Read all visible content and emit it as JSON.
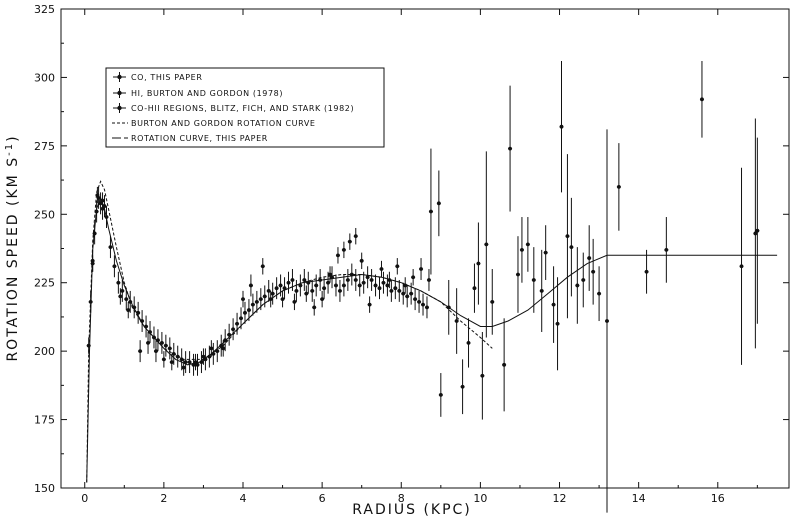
{
  "chart_data": {
    "type": "scatter",
    "xlabel": "RADIUS (KPC)",
    "ylabel": "ROTATION SPEED (KM S",
    "ylabel_sup": "-1",
    "ylabel_close": ")",
    "xlim": [
      -0.6,
      17.8
    ],
    "ylim": [
      150,
      325
    ],
    "x_ticks": [
      0,
      2,
      4,
      6,
      8,
      10,
      12,
      14,
      16
    ],
    "y_ticks": [
      150,
      175,
      200,
      225,
      250,
      275,
      300,
      325
    ],
    "grid": false,
    "legend_placement": "top-left",
    "series": [
      {
        "name": "CO, THIS PAPER",
        "kind": "points",
        "points": [
          [
            0.15,
            218,
            4
          ],
          [
            0.2,
            233,
            4
          ],
          [
            0.25,
            243,
            4
          ],
          [
            0.3,
            251,
            4
          ],
          [
            0.35,
            256,
            4
          ],
          [
            0.4,
            254,
            4
          ],
          [
            0.45,
            252,
            4
          ],
          [
            0.5,
            253,
            4
          ],
          [
            0.55,
            249,
            4
          ],
          [
            0.65,
            238,
            4
          ],
          [
            0.75,
            231,
            4
          ],
          [
            0.85,
            225,
            4
          ],
          [
            0.95,
            222,
            4
          ],
          [
            1.05,
            219,
            4
          ],
          [
            1.15,
            218,
            4
          ],
          [
            1.25,
            216,
            4
          ],
          [
            1.35,
            214,
            4
          ],
          [
            1.45,
            211,
            4
          ],
          [
            1.55,
            209,
            4
          ],
          [
            1.65,
            207,
            4
          ],
          [
            1.75,
            205,
            4
          ],
          [
            1.85,
            204,
            4
          ],
          [
            1.95,
            203,
            4
          ],
          [
            2.05,
            202,
            4
          ],
          [
            2.15,
            201,
            4
          ],
          [
            2.25,
            199,
            4
          ],
          [
            2.35,
            198,
            4
          ],
          [
            2.45,
            197,
            4
          ],
          [
            2.55,
            196,
            4
          ],
          [
            2.65,
            196,
            4
          ],
          [
            2.75,
            195,
            4
          ],
          [
            2.85,
            195,
            4
          ],
          [
            2.95,
            196,
            4
          ],
          [
            3.05,
            197,
            4
          ],
          [
            3.15,
            198,
            4
          ],
          [
            3.25,
            199,
            4
          ],
          [
            3.35,
            200,
            4
          ],
          [
            3.45,
            202,
            4
          ],
          [
            3.55,
            204,
            4
          ],
          [
            3.65,
            206,
            4
          ],
          [
            3.75,
            208,
            4
          ],
          [
            3.85,
            210,
            4
          ],
          [
            3.95,
            212,
            4
          ],
          [
            4.05,
            214,
            4
          ],
          [
            4.15,
            215,
            4
          ],
          [
            4.25,
            217,
            4
          ],
          [
            4.35,
            218,
            4
          ],
          [
            4.45,
            219,
            4
          ],
          [
            4.55,
            220,
            4
          ],
          [
            4.65,
            222,
            4
          ],
          [
            4.75,
            221,
            4
          ],
          [
            4.85,
            223,
            4
          ],
          [
            4.95,
            224,
            4
          ],
          [
            5.05,
            223,
            4
          ],
          [
            5.15,
            225,
            4
          ],
          [
            5.25,
            226,
            4
          ],
          [
            5.35,
            222,
            4
          ],
          [
            5.45,
            224,
            4
          ],
          [
            5.55,
            226,
            4
          ],
          [
            5.65,
            225,
            4
          ],
          [
            5.75,
            222,
            4
          ],
          [
            5.85,
            224,
            4
          ],
          [
            5.95,
            226,
            4
          ],
          [
            6.05,
            223,
            4
          ],
          [
            6.15,
            225,
            4
          ],
          [
            6.25,
            227,
            4
          ],
          [
            6.35,
            224,
            4
          ],
          [
            6.45,
            222,
            4
          ],
          [
            6.55,
            224,
            4
          ],
          [
            6.65,
            226,
            4
          ],
          [
            6.75,
            228,
            4
          ],
          [
            6.85,
            226,
            4
          ],
          [
            6.95,
            224,
            4
          ],
          [
            7.05,
            225,
            4
          ],
          [
            7.15,
            227,
            4
          ],
          [
            7.25,
            226,
            4
          ],
          [
            7.35,
            224,
            4
          ],
          [
            7.45,
            223,
            4
          ],
          [
            7.55,
            225,
            4
          ],
          [
            7.65,
            224,
            4
          ],
          [
            7.75,
            222,
            4
          ],
          [
            7.85,
            223,
            4
          ],
          [
            7.95,
            222,
            4
          ],
          [
            8.05,
            221,
            4
          ],
          [
            8.15,
            220,
            4
          ],
          [
            8.25,
            221,
            4
          ],
          [
            8.35,
            219,
            4
          ],
          [
            8.45,
            218,
            4
          ],
          [
            8.55,
            217,
            4
          ],
          [
            8.65,
            216,
            4
          ]
        ]
      },
      {
        "name": "HI, BURTON AND GORDON (1978)",
        "kind": "points",
        "points": [
          [
            0.1,
            202,
            3
          ],
          [
            0.2,
            232,
            3
          ],
          [
            0.32,
            257,
            3
          ],
          [
            0.45,
            255,
            3
          ],
          [
            0.9,
            220,
            3
          ],
          [
            1.1,
            215,
            3
          ],
          [
            1.4,
            200,
            4
          ],
          [
            1.6,
            203,
            4
          ],
          [
            1.8,
            200,
            4
          ],
          [
            2.0,
            197,
            3
          ],
          [
            2.2,
            196,
            3
          ],
          [
            2.5,
            194,
            3
          ],
          [
            2.8,
            196,
            3
          ],
          [
            3.0,
            198,
            3
          ],
          [
            3.2,
            201,
            3
          ],
          [
            3.5,
            201,
            3
          ],
          [
            4.0,
            219,
            3
          ],
          [
            4.2,
            224,
            4
          ],
          [
            4.5,
            231,
            3
          ],
          [
            4.7,
            219,
            3
          ],
          [
            5.0,
            219,
            3
          ],
          [
            5.3,
            218,
            3
          ],
          [
            5.6,
            221,
            3
          ],
          [
            5.8,
            216,
            3
          ],
          [
            6.0,
            219,
            3
          ],
          [
            6.2,
            228,
            3
          ],
          [
            6.4,
            235,
            3
          ],
          [
            6.55,
            237,
            3
          ],
          [
            6.7,
            240,
            3
          ],
          [
            6.85,
            242,
            3
          ],
          [
            7.0,
            233,
            3
          ],
          [
            7.2,
            217,
            3
          ],
          [
            7.5,
            230,
            3
          ],
          [
            7.7,
            226,
            3
          ],
          [
            7.9,
            231,
            3
          ],
          [
            8.1,
            224,
            3
          ],
          [
            8.3,
            227,
            3
          ],
          [
            8.5,
            230,
            4
          ],
          [
            8.7,
            226,
            4
          ]
        ]
      },
      {
        "name": "CO-HII REGIONS, BLITZ, FICH, AND STARK (1982)",
        "kind": "points",
        "points": [
          [
            8.75,
            251,
            23
          ],
          [
            8.95,
            254,
            12
          ],
          [
            9.0,
            184,
            8
          ],
          [
            9.2,
            216,
            10
          ],
          [
            9.4,
            211,
            12
          ],
          [
            9.55,
            187,
            10
          ],
          [
            9.7,
            203,
            9
          ],
          [
            9.85,
            223,
            9
          ],
          [
            9.95,
            232,
            15
          ],
          [
            10.05,
            191,
            16
          ],
          [
            10.15,
            239,
            34
          ],
          [
            10.3,
            218,
            12
          ],
          [
            10.6,
            195,
            17
          ],
          [
            10.75,
            274,
            23
          ],
          [
            10.95,
            228,
            14
          ],
          [
            11.05,
            237,
            12
          ],
          [
            11.2,
            239,
            10
          ],
          [
            11.35,
            226,
            12
          ],
          [
            11.55,
            222,
            15
          ],
          [
            11.65,
            236,
            10
          ],
          [
            11.85,
            217,
            14
          ],
          [
            11.95,
            210,
            17
          ],
          [
            12.05,
            282,
            24
          ],
          [
            12.2,
            242,
            30
          ],
          [
            12.3,
            238,
            18
          ],
          [
            12.45,
            224,
            14
          ],
          [
            12.6,
            226,
            10
          ],
          [
            12.75,
            234,
            12
          ],
          [
            12.85,
            229,
            12
          ],
          [
            13.0,
            221,
            10
          ],
          [
            13.2,
            211,
            70
          ],
          [
            13.5,
            260,
            16
          ],
          [
            14.2,
            229,
            8
          ],
          [
            14.7,
            237,
            12
          ],
          [
            15.6,
            292,
            14
          ],
          [
            16.6,
            231,
            36
          ],
          [
            16.95,
            243,
            42
          ],
          [
            17.0,
            244,
            34
          ]
        ]
      },
      {
        "name": "BURTON AND GORDON ROTATION CURVE",
        "kind": "dashed",
        "points": [
          [
            0.05,
            152
          ],
          [
            0.1,
            200
          ],
          [
            0.2,
            240
          ],
          [
            0.3,
            258
          ],
          [
            0.4,
            262
          ],
          [
            0.5,
            259
          ],
          [
            0.6,
            252
          ],
          [
            0.8,
            238
          ],
          [
            1.0,
            225
          ],
          [
            1.2,
            216
          ],
          [
            1.5,
            209
          ],
          [
            2.0,
            201
          ],
          [
            2.5,
            197
          ],
          [
            3.0,
            197
          ],
          [
            3.5,
            202
          ],
          [
            4.0,
            210
          ],
          [
            4.5,
            217
          ],
          [
            5.0,
            222
          ],
          [
            5.5,
            225
          ],
          [
            6.0,
            227
          ],
          [
            6.5,
            228
          ],
          [
            7.0,
            228
          ],
          [
            7.5,
            227
          ],
          [
            8.0,
            225
          ],
          [
            8.5,
            222
          ],
          [
            9.0,
            218
          ],
          [
            9.5,
            211
          ],
          [
            10.0,
            205
          ],
          [
            10.3,
            201
          ]
        ]
      },
      {
        "name": "ROTATION CURVE, THIS PAPER",
        "kind": "solid",
        "points": [
          [
            0.05,
            152
          ],
          [
            0.12,
            200
          ],
          [
            0.2,
            237
          ],
          [
            0.3,
            252
          ],
          [
            0.4,
            256
          ],
          [
            0.5,
            252
          ],
          [
            0.6,
            245
          ],
          [
            0.8,
            233
          ],
          [
            1.0,
            224
          ],
          [
            1.2,
            217
          ],
          [
            1.5,
            209
          ],
          [
            2.0,
            201
          ],
          [
            2.3,
            197
          ],
          [
            2.6,
            195
          ],
          [
            2.9,
            196
          ],
          [
            3.2,
            199
          ],
          [
            3.5,
            203
          ],
          [
            4.0,
            210
          ],
          [
            4.5,
            217
          ],
          [
            5.0,
            222
          ],
          [
            5.5,
            225
          ],
          [
            6.0,
            226
          ],
          [
            6.5,
            227
          ],
          [
            7.0,
            228
          ],
          [
            7.5,
            227
          ],
          [
            8.0,
            225
          ],
          [
            8.5,
            222
          ],
          [
            9.0,
            218
          ],
          [
            9.5,
            213
          ],
          [
            10.0,
            209
          ],
          [
            10.3,
            209
          ],
          [
            10.7,
            211
          ],
          [
            11.2,
            215
          ],
          [
            11.7,
            221
          ],
          [
            12.2,
            227
          ],
          [
            12.7,
            232
          ],
          [
            13.2,
            235
          ],
          [
            13.5,
            235
          ],
          [
            15.0,
            235
          ],
          [
            16.0,
            235
          ],
          [
            17.5,
            235
          ]
        ]
      }
    ]
  }
}
